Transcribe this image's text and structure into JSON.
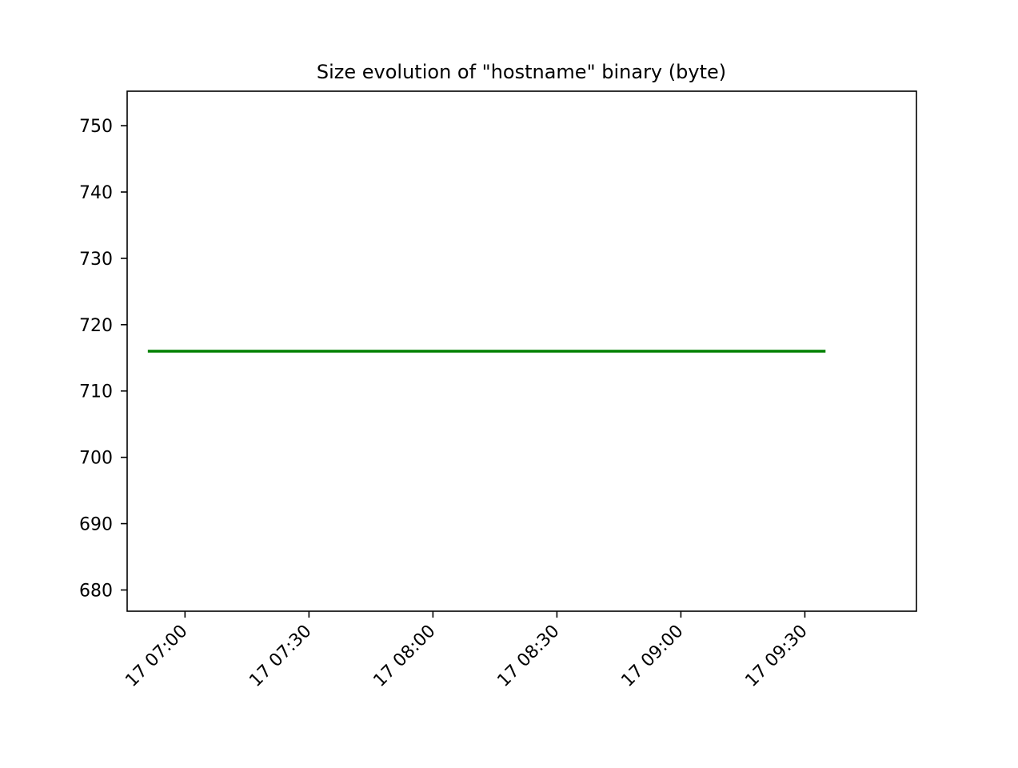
{
  "chart_data": {
    "type": "line",
    "title": "Size evolution of \"hostname\" binary (byte)",
    "xlabel": "",
    "ylabel": "",
    "x_ticks": [
      "17 07:00",
      "17 07:30",
      "17 08:00",
      "17 08:30",
      "17 09:00",
      "17 09:30"
    ],
    "y_ticks": [
      680,
      690,
      700,
      710,
      720,
      730,
      740,
      750
    ],
    "ylim": [
      676.8,
      755.2
    ],
    "xlim": [
      "06:46",
      "09:57"
    ],
    "grid": false,
    "series": [
      {
        "color": "#008000",
        "x": [
          "06:51",
          "09:35"
        ],
        "values": [
          716,
          716
        ]
      }
    ]
  }
}
